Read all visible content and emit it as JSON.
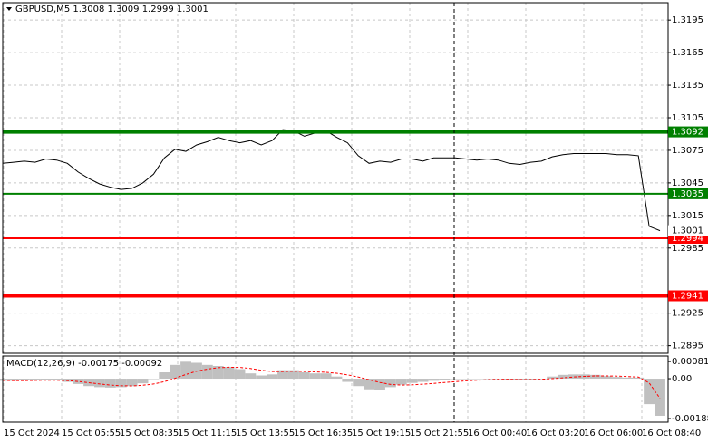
{
  "chart_data": [
    {
      "type": "line",
      "title": "GBPUSD,M5  1.3008 1.3009 1.2999 1.3001",
      "color": "#000000",
      "values": [
        1.3063,
        1.3064,
        1.3065,
        1.3064,
        1.3067,
        1.3066,
        1.3063,
        1.3055,
        1.3049,
        1.3044,
        1.3041,
        1.3039,
        1.304,
        1.3045,
        1.3053,
        1.3068,
        1.3076,
        1.3074,
        1.308,
        1.3083,
        1.3087,
        1.3084,
        1.3082,
        1.3084,
        1.308,
        1.3084,
        1.3094,
        1.3093,
        1.3088,
        1.3091,
        1.3093,
        1.3087,
        1.3082,
        1.307,
        1.3063,
        1.3065,
        1.3064,
        1.3067,
        1.3067,
        1.3065,
        1.3068,
        1.3068,
        1.3068,
        1.3067,
        1.3066,
        1.3067,
        1.3066,
        1.3063,
        1.3062,
        1.3064,
        1.3065,
        1.3069,
        1.3071,
        1.3072,
        1.3072,
        1.3072,
        1.3072,
        1.3071,
        1.3071,
        1.307,
        1.3005,
        1.3001
      ],
      "ylim": [
        1.2888,
        1.3211
      ],
      "yticks": [
        1.3195,
        1.3165,
        1.3135,
        1.3105,
        1.3075,
        1.3045,
        1.3015,
        1.2985,
        1.2925,
        1.2895
      ],
      "grid": true,
      "levels": [
        {
          "value": 1.3092,
          "color": "#008000",
          "line_width": 4
        },
        {
          "value": 1.3035,
          "color": "#008000",
          "line_width": 2
        },
        {
          "value": 1.2994,
          "color": "#ff0000",
          "line_width": 2
        },
        {
          "value": 1.2941,
          "color": "#ff0000",
          "line_width": 4
        }
      ],
      "last_price": 1.3001
    },
    {
      "type": "macd",
      "title": "MACD(12,26,9) -0.00175 -0.00092",
      "histogram": {
        "color": "#c0c0c0",
        "values": [
          -0.0001,
          -0.0001,
          -8e-05,
          -6e-05,
          -5e-05,
          -8e-05,
          -0.00015,
          -0.00025,
          -0.00035,
          -0.0004,
          -0.00042,
          -0.0004,
          -0.00035,
          -0.00022,
          0,
          0.0003,
          0.00065,
          0.0008,
          0.00075,
          0.00065,
          0.0006,
          0.00055,
          0.00045,
          0.00025,
          0.00015,
          0.0002,
          0.0004,
          0.0004,
          0.0003,
          0.00025,
          0.00025,
          0.0001,
          -0.00015,
          -0.00035,
          -0.0005,
          -0.00052,
          -0.0004,
          -0.00028,
          -0.0002,
          -0.00015,
          -0.0001,
          -5e-05,
          0,
          0,
          -2e-05,
          0,
          0,
          -5e-05,
          -8e-05,
          -5e-05,
          0,
          0.0001,
          0.00018,
          0.0002,
          0.0002,
          0.00018,
          0.00012,
          8e-05,
          5e-05,
          5e-05,
          -0.0012,
          -0.00175
        ]
      },
      "signal": {
        "color": "#ff0000",
        "values": [
          -8e-05,
          -9e-05,
          -9e-05,
          -8e-05,
          -7e-05,
          -7e-05,
          -9e-05,
          -0.00013,
          -0.00019,
          -0.00025,
          -0.0003,
          -0.00033,
          -0.00034,
          -0.00031,
          -0.00025,
          -0.00014,
          2e-05,
          0.0002,
          0.00035,
          0.00045,
          0.00052,
          0.00054,
          0.00053,
          0.00048,
          0.0004,
          0.00034,
          0.00034,
          0.00035,
          0.00034,
          0.00032,
          0.0003,
          0.00026,
          0.00018,
          8e-05,
          -5e-05,
          -0.00018,
          -0.00027,
          -0.0003,
          -0.00029,
          -0.00026,
          -0.00022,
          -0.00018,
          -0.00014,
          -0.0001,
          -7e-05,
          -5e-05,
          -3e-05,
          -3e-05,
          -4e-05,
          -4e-05,
          -3e-05,
          0,
          4e-05,
          8e-05,
          0.00011,
          0.00013,
          0.00013,
          0.00012,
          0.0001,
          8e-05,
          -0.0002,
          -0.00092
        ]
      },
      "ylim": [
        -0.00205,
        0.00107
      ],
      "yticks": [
        0.00081,
        {
          "value": 0,
          "label": "0.00"
        },
        -0.00188
      ],
      "time_labels": [
        "15 Oct 2024",
        "15 Oct 05:55",
        "15 Oct 08:35",
        "15 Oct 11:15",
        "15 Oct 13:55",
        "15 Oct 16:35",
        "15 Oct 19:15",
        "15 Oct 21:55",
        "16 Oct 00:40",
        "16 Oct 03:20",
        "16 Oct 06:00",
        "16 Oct 08:40"
      ]
    }
  ]
}
